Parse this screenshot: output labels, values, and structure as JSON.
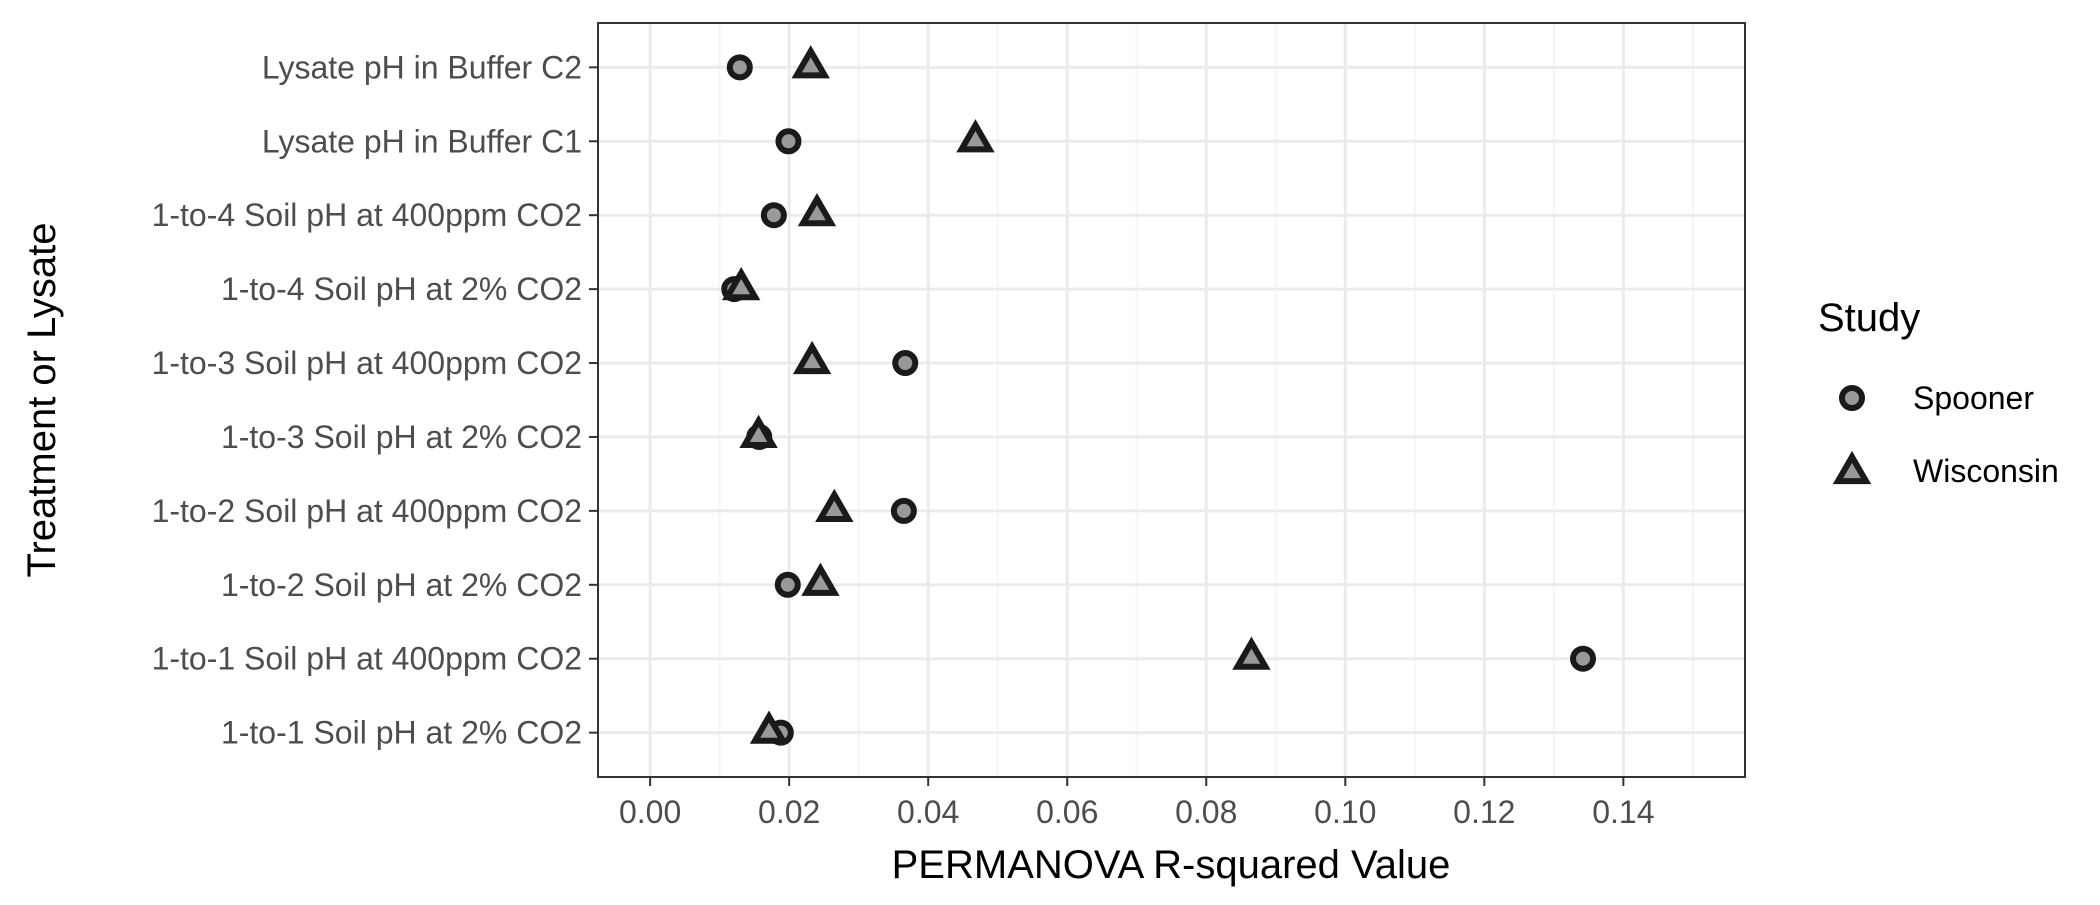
{
  "chart_data": {
    "type": "scatter",
    "title": "",
    "xlabel": "PERMANOVA R-squared Value",
    "ylabel": "Treatment or Lysate",
    "xlim": [
      -0.0075,
      0.1575
    ],
    "x_ticks": [
      "0.00",
      "0.02",
      "0.04",
      "0.06",
      "0.08",
      "0.10",
      "0.12",
      "0.14"
    ],
    "x_tick_values": [
      0,
      0.02,
      0.04,
      0.06,
      0.08,
      0.1,
      0.12,
      0.14
    ],
    "grid": true,
    "legend_title": "Study",
    "legend_position": "right",
    "categories": [
      "1-to-1 Soil pH at 2% CO2",
      "1-to-1 Soil pH at 400ppm CO2",
      "1-to-2 Soil pH at 2% CO2",
      "1-to-2 Soil pH at 400ppm CO2",
      "1-to-3 Soil pH at 2% CO2",
      "1-to-3 Soil pH at 400ppm CO2",
      "1-to-4 Soil pH at 2% CO2",
      "1-to-4 Soil pH at 400ppm CO2",
      "Lysate pH in Buffer C1",
      "Lysate pH in Buffer C2"
    ],
    "series": [
      {
        "name": "Spooner",
        "marker": "circle",
        "values": [
          0.0188,
          0.1342,
          0.0198,
          0.0365,
          0.0157,
          0.0367,
          0.0121,
          0.0178,
          0.0199,
          0.0129
        ]
      },
      {
        "name": "Wisconsin",
        "marker": "triangle",
        "values": [
          0.0171,
          0.0865,
          0.0245,
          0.0265,
          0.0156,
          0.0233,
          0.0131,
          0.024,
          0.0468,
          0.0231
        ]
      }
    ]
  },
  "colors": {
    "panel_border": "#333333",
    "grid_major": "#ebebeb",
    "grid_minor": "#f5f5f5",
    "marker_stroke": "#1a1a1a",
    "marker_fill": "#999999",
    "tick_text": "#4d4d4d",
    "title_text": "#000000"
  }
}
